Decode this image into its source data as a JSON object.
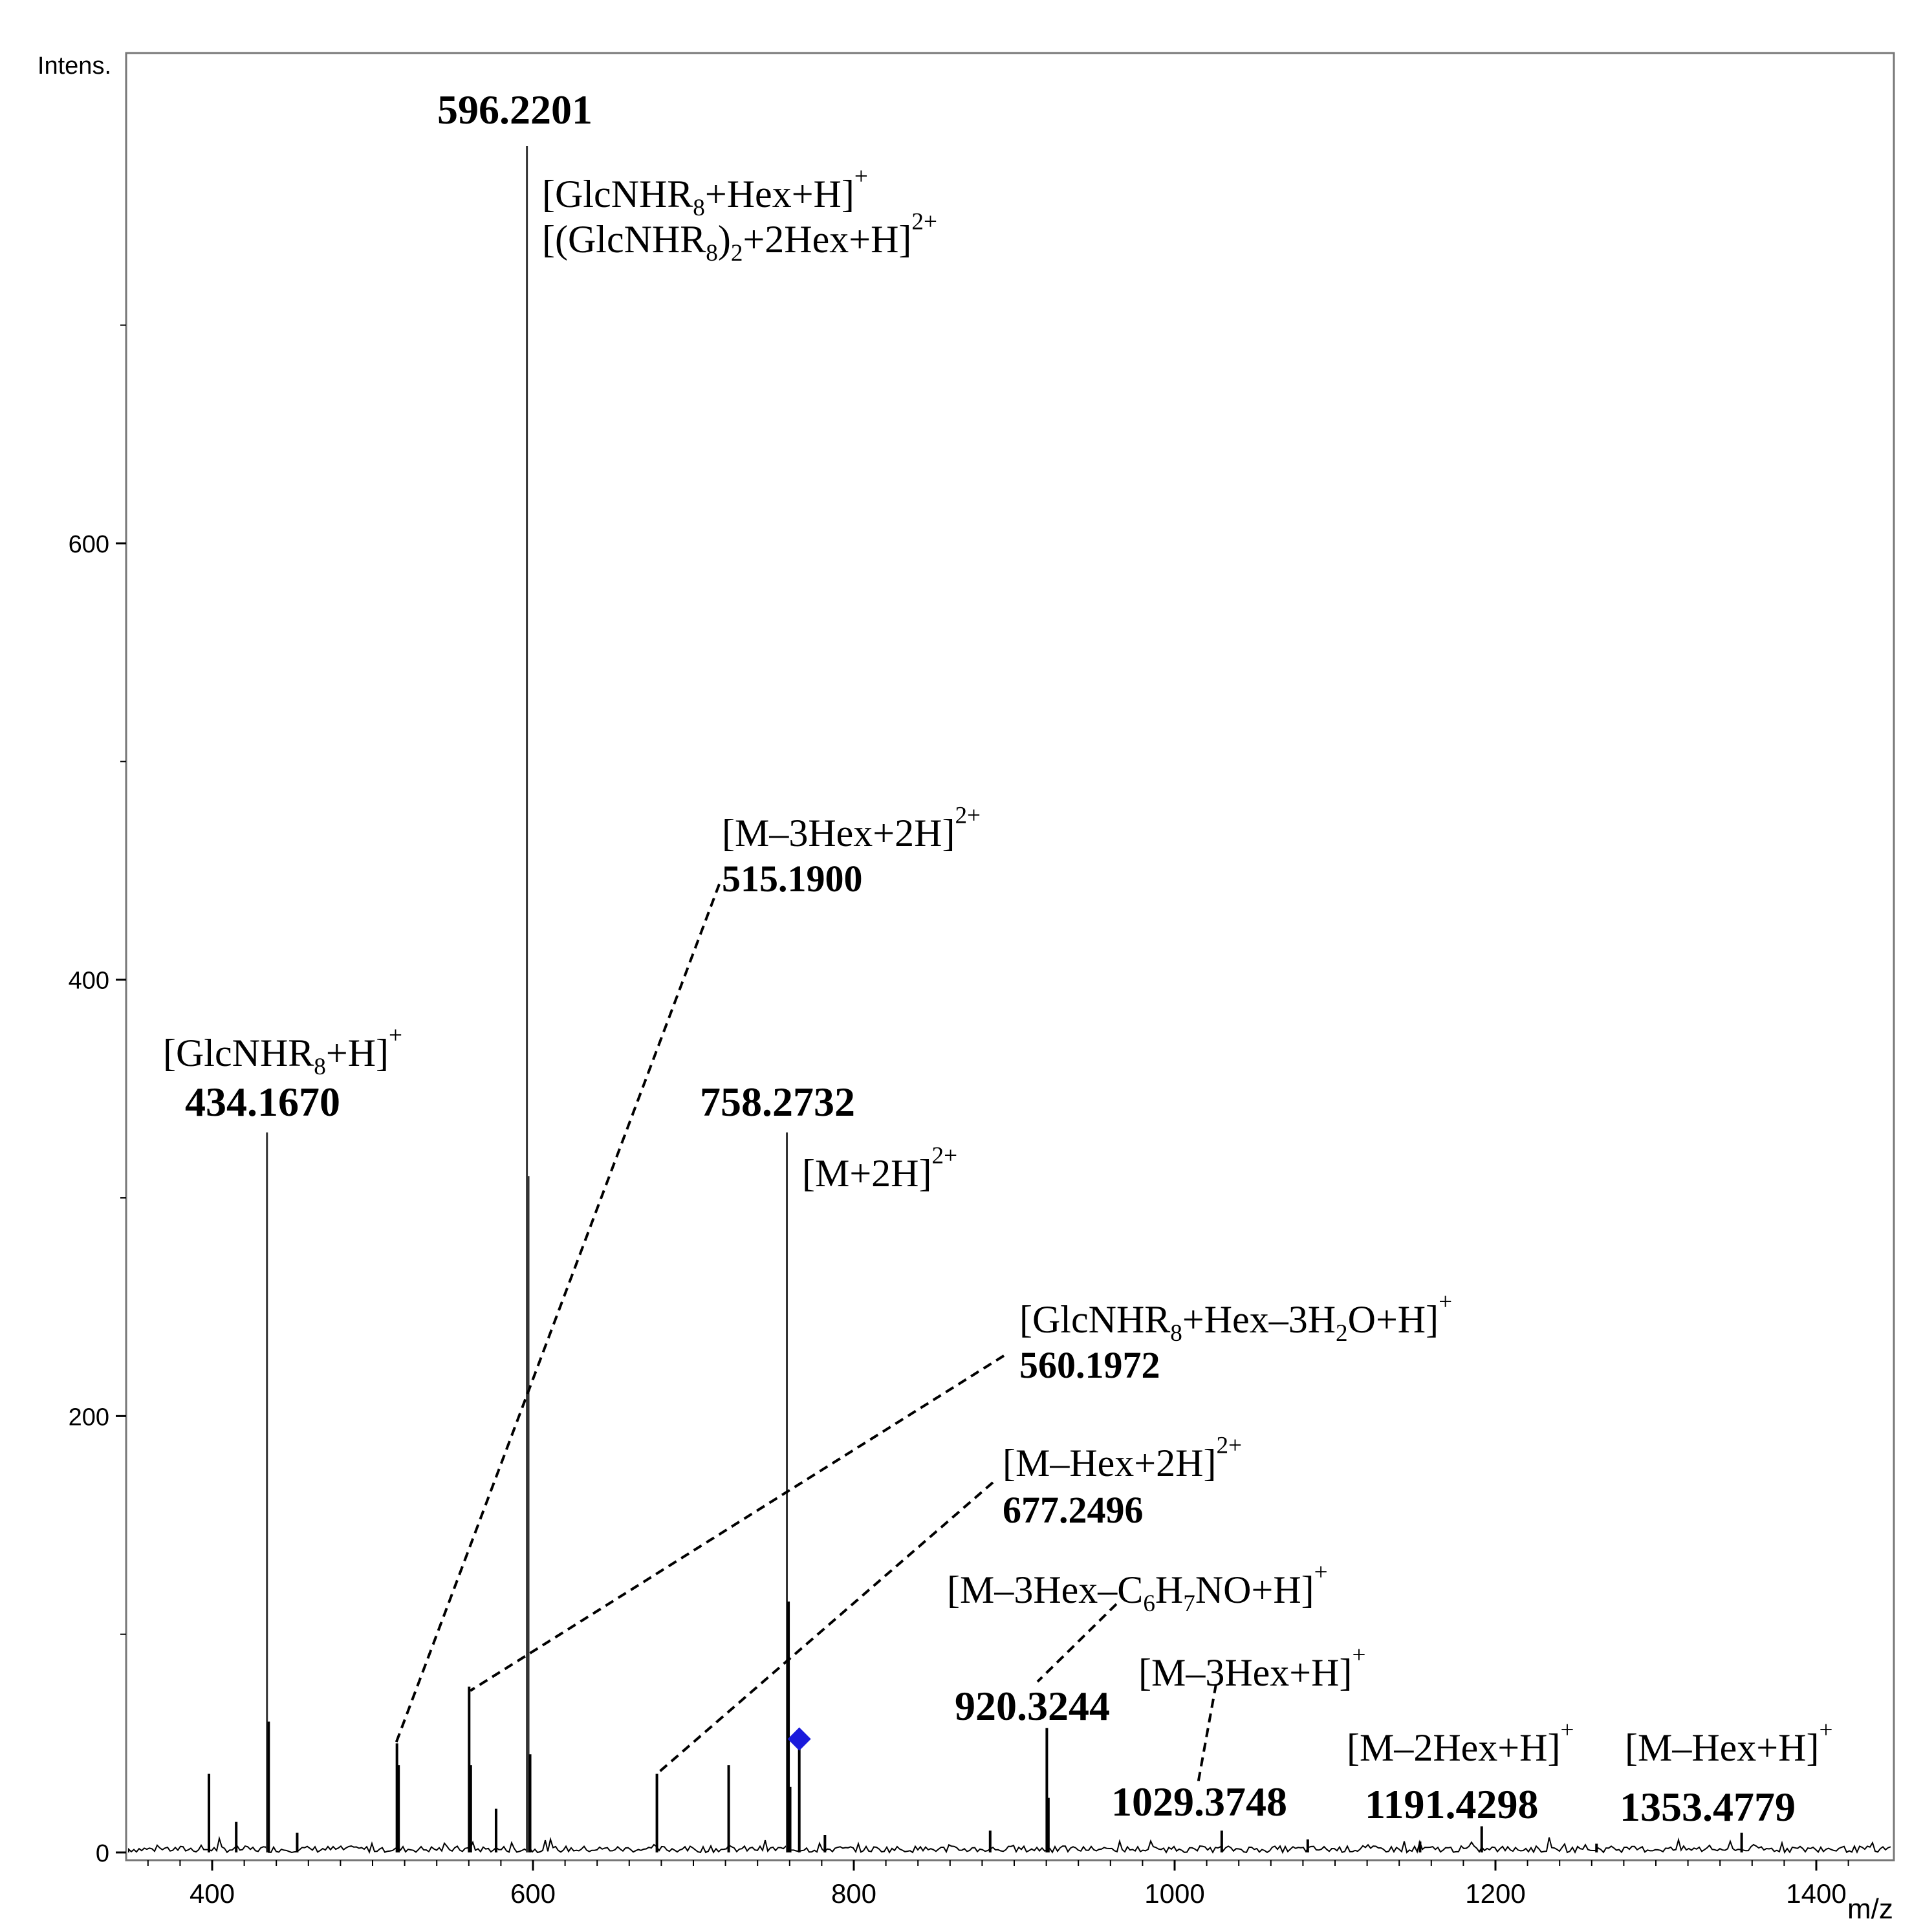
{
  "chart_data": {
    "type": "line",
    "ylabel": "Intens.",
    "xlabel": "m/z",
    "xlim": [
      350,
      1430
    ],
    "ylim": [
      0,
      800
    ],
    "xticks": [
      400,
      600,
      800,
      1000,
      1200,
      1400
    ],
    "yticks": [
      0,
      200,
      400,
      600
    ],
    "x_tick_labels": [
      "400",
      "600",
      "800",
      "1000",
      "1200",
      "1400"
    ],
    "y_tick_labels": [
      "0",
      "200",
      "400",
      "600"
    ],
    "peaks": [
      {
        "x": 398,
        "y": 36
      },
      {
        "x": 415,
        "y": 14
      },
      {
        "x": 434.167,
        "y": 330
      },
      {
        "x": 435.2,
        "y": 60
      },
      {
        "x": 453,
        "y": 9
      },
      {
        "x": 515.19,
        "y": 50
      },
      {
        "x": 516.2,
        "y": 40
      },
      {
        "x": 560.1972,
        "y": 76
      },
      {
        "x": 561.2,
        "y": 40
      },
      {
        "x": 577,
        "y": 20
      },
      {
        "x": 596.2201,
        "y": 782
      },
      {
        "x": 597.2,
        "y": 310
      },
      {
        "x": 598.2,
        "y": 45
      },
      {
        "x": 677.2496,
        "y": 36
      },
      {
        "x": 722,
        "y": 40
      },
      {
        "x": 758.2732,
        "y": 330
      },
      {
        "x": 759.3,
        "y": 115
      },
      {
        "x": 760.3,
        "y": 30
      },
      {
        "x": 766,
        "y": 50
      },
      {
        "x": 782,
        "y": 8
      },
      {
        "x": 885,
        "y": 10
      },
      {
        "x": 920.3244,
        "y": 57
      },
      {
        "x": 921.3,
        "y": 25
      },
      {
        "x": 1029.3748,
        "y": 10
      },
      {
        "x": 1083,
        "y": 6
      },
      {
        "x": 1153,
        "y": 5
      },
      {
        "x": 1191.4298,
        "y": 12
      },
      {
        "x": 1263,
        "y": 4
      },
      {
        "x": 1353.4779,
        "y": 9
      }
    ],
    "marker": {
      "x": 766,
      "y": 52,
      "shape": "diamond",
      "color": "#1a1adc"
    },
    "annotations": [
      {
        "id": "p596",
        "value": "596.2201",
        "ions": [
          "[GlcNHR8+Hex+H]+",
          "[(GlcNHR8)2+2Hex+H]2+"
        ]
      },
      {
        "id": "p515",
        "value": "515.1900",
        "ions": [
          "[M–3Hex+2H]2+"
        ]
      },
      {
        "id": "p434",
        "value": "434.1670",
        "ions": [
          "[GlcNHR8+H]+"
        ]
      },
      {
        "id": "p758",
        "value": "758.2732",
        "ions": [
          "[M+2H]2+"
        ]
      },
      {
        "id": "p560",
        "value": "560.1972",
        "ions": [
          "[GlcNHR8+Hex–3H2O+H]+"
        ]
      },
      {
        "id": "p677",
        "value": "677.2496",
        "ions": [
          "[M–Hex+2H]2+"
        ]
      },
      {
        "id": "p920",
        "value": "920.3244",
        "ions": [
          "[M–3Hex–C6H7NO+H]+"
        ]
      },
      {
        "id": "p1029",
        "value": "1029.3748",
        "ions": [
          "[M–3Hex+H]+"
        ]
      },
      {
        "id": "p1191",
        "value": "1191.4298",
        "ions": [
          "[M–2Hex+H]+"
        ]
      },
      {
        "id": "p1353",
        "value": "1353.4779",
        "ions": [
          "[M–Hex+H]+"
        ]
      }
    ]
  }
}
